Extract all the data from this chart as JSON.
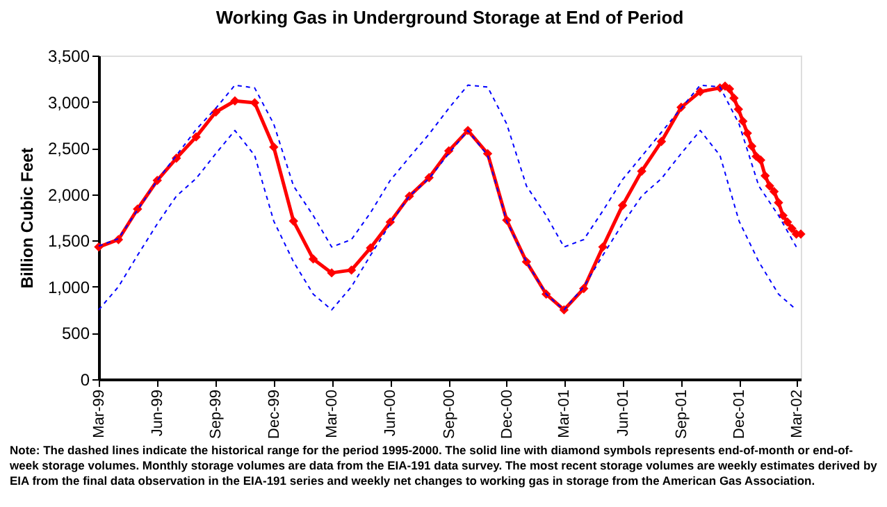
{
  "chart_data": {
    "type": "line",
    "title": "Working Gas in Underground Storage at End of Period",
    "ylabel": "Billion Cubic Feet",
    "x": [
      "1999-03-01",
      "1999-04-01",
      "1999-05-01",
      "1999-06-01",
      "1999-07-01",
      "1999-08-01",
      "1999-09-01",
      "1999-10-01",
      "1999-11-01",
      "1999-12-01",
      "2000-01-01",
      "2000-02-01",
      "2000-03-01",
      "2000-04-01",
      "2000-05-01",
      "2000-06-01",
      "2000-07-01",
      "2000-08-01",
      "2000-09-01",
      "2000-10-01",
      "2000-11-01",
      "2000-12-01",
      "2001-01-01",
      "2001-02-01",
      "2001-03-01",
      "2001-04-01",
      "2001-05-01",
      "2001-06-01",
      "2001-07-01",
      "2001-08-01",
      "2001-09-01",
      "2001-10-01",
      "2001-11-01",
      "2001-12-01",
      "2002-01-01",
      "2002-02-01",
      "2002-03-01"
    ],
    "series": [
      {
        "color": "#0000ff",
        "line_style": "dashed",
        "marker": "none",
        "values": [
          1440,
          1520,
          1830,
          2150,
          2420,
          2700,
          2930,
          3180,
          3150,
          2760,
          2090,
          1770,
          1430,
          1510,
          1800,
          2150,
          2400,
          2650,
          2930,
          3180,
          3160,
          2760,
          2090,
          1770,
          1430,
          1510,
          1820,
          2160,
          2410,
          2670,
          2930,
          3180,
          3160,
          2760,
          2090,
          1770,
          1430
        ]
      },
      {
        "color": "#0000ff",
        "line_style": "dashed",
        "marker": "none",
        "values": [
          750,
          1000,
          1340,
          1680,
          1980,
          2170,
          2440,
          2690,
          2420,
          1710,
          1270,
          920,
          750,
          1000,
          1340,
          1680,
          1980,
          2170,
          2440,
          2690,
          2420,
          1710,
          1270,
          920,
          750,
          1000,
          1340,
          1680,
          1980,
          2170,
          2440,
          2690,
          2420,
          1710,
          1270,
          920,
          750
        ]
      },
      {
        "color": "#ff0000",
        "line_style": "solid",
        "marker": "diamond",
        "x": [
          "1999-03-01",
          "1999-04-01",
          "1999-05-01",
          "1999-06-01",
          "1999-07-01",
          "1999-08-01",
          "1999-09-01",
          "1999-10-01",
          "1999-11-01",
          "1999-12-01",
          "2000-01-01",
          "2000-02-01",
          "2000-03-01",
          "2000-04-01",
          "2000-05-01",
          "2000-06-01",
          "2000-07-01",
          "2000-08-01",
          "2000-09-01",
          "2000-10-01",
          "2000-11-01",
          "2000-12-01",
          "2001-01-01",
          "2001-02-01",
          "2001-03-01",
          "2001-04-01",
          "2001-05-01",
          "2001-06-01",
          "2001-07-01",
          "2001-08-01",
          "2001-09-01",
          "2001-10-01",
          "2001-11-01",
          "2001-11-09",
          "2001-11-16",
          "2001-11-23",
          "2001-11-30",
          "2001-12-07",
          "2001-12-14",
          "2001-12-21",
          "2001-12-28",
          "2002-01-04",
          "2002-01-11",
          "2002-01-18",
          "2002-01-25",
          "2002-02-01",
          "2002-02-08",
          "2002-02-15",
          "2002-02-22",
          "2002-03-01",
          "2002-03-08"
        ],
        "values": [
          1430,
          1510,
          1840,
          2150,
          2390,
          2620,
          2890,
          3010,
          2990,
          2510,
          1710,
          1300,
          1150,
          1180,
          1420,
          1700,
          1980,
          2180,
          2470,
          2690,
          2440,
          1720,
          1270,
          920,
          750,
          980,
          1430,
          1880,
          2250,
          2570,
          2940,
          3110,
          3150,
          3170,
          3140,
          3040,
          2920,
          2790,
          2660,
          2520,
          2410,
          2370,
          2200,
          2090,
          2030,
          1910,
          1770,
          1700,
          1630,
          1570,
          1570
        ]
      }
    ],
    "xlim": [
      "1999-03-01",
      "2002-03-08"
    ],
    "xticks": [
      {
        "value": "1999-03-01",
        "label": "Mar-99"
      },
      {
        "value": "1999-06-01",
        "label": "Jun-99"
      },
      {
        "value": "1999-09-01",
        "label": "Sep-99"
      },
      {
        "value": "1999-12-01",
        "label": "Dec-99"
      },
      {
        "value": "2000-03-01",
        "label": "Mar-00"
      },
      {
        "value": "2000-06-01",
        "label": "Jun-00"
      },
      {
        "value": "2000-09-01",
        "label": "Sep-00"
      },
      {
        "value": "2000-12-01",
        "label": "Dec-00"
      },
      {
        "value": "2001-03-01",
        "label": "Mar-01"
      },
      {
        "value": "2001-06-01",
        "label": "Jun-01"
      },
      {
        "value": "2001-09-01",
        "label": "Sep-01"
      },
      {
        "value": "2001-12-01",
        "label": "Dec-01"
      },
      {
        "value": "2002-03-01",
        "label": "Mar-02"
      }
    ],
    "ylim": [
      0,
      3500
    ],
    "yticks": [
      {
        "value": 0,
        "label": "0"
      },
      {
        "value": 500,
        "label": "500"
      },
      {
        "value": 1000,
        "label": "1,000"
      },
      {
        "value": 1500,
        "label": "1,500"
      },
      {
        "value": 2000,
        "label": "2,000"
      },
      {
        "value": 2500,
        "label": "2,500"
      },
      {
        "value": 3000,
        "label": "3,000"
      },
      {
        "value": 3500,
        "label": "3,500"
      }
    ],
    "grid": false,
    "annotations": [
      "Note: The dashed lines indicate the historical range for the period 1995-2000.  The solid line with diamond symbols represents end-of-month or end-of-week storage volumes.  Monthly storage volumes are data from the EIA-191 data survey.  The most recent storage volumes are weekly estimates derived by EIA from the final data observation in the EIA-191 series and weekly net changes to working gas in storage from the American Gas Association."
    ]
  }
}
